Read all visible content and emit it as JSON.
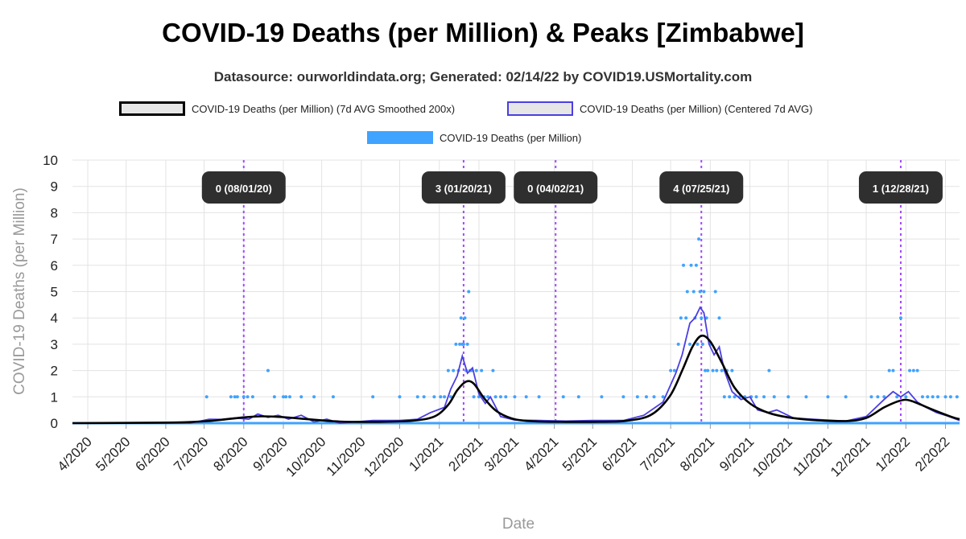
{
  "chart_data": {
    "type": "line",
    "title": "COVID-19 Deaths (per Million) & Peaks [Zimbabwe]",
    "subtitle": "Datasource: ourworldindata.org; Generated: 02/14/22 by COVID19.USMortality.com",
    "xlabel": "Date",
    "ylabel": "COVID-19 Deaths (per Million)",
    "ylim": [
      0,
      10
    ],
    "yticks": [
      0,
      1,
      2,
      3,
      4,
      5,
      6,
      7,
      8,
      9,
      10
    ],
    "xlim": [
      "2020-03-20",
      "2022-02-12"
    ],
    "xticks": [
      "4/2020",
      "5/2020",
      "6/2020",
      "7/2020",
      "8/2020",
      "9/2020",
      "10/2020",
      "11/2020",
      "12/2020",
      "1/2021",
      "2/2021",
      "3/2021",
      "4/2021",
      "5/2021",
      "6/2021",
      "7/2021",
      "8/2021",
      "9/2021",
      "10/2021",
      "11/2021",
      "12/2021",
      "1/2022",
      "2/2022"
    ],
    "grid": true,
    "legend": [
      {
        "label": "COVID-19 Deaths (per Million) (7d AVG Smoothed 200x)",
        "color": "#000000",
        "fill": "#e6e6e6",
        "kind": "line"
      },
      {
        "label": "COVID-19 Deaths (per Million) (Centered 7d AVG)",
        "color": "#4a3fe0",
        "fill": "#e6e6e6",
        "kind": "line"
      },
      {
        "label": "COVID-19 Deaths (per Million)",
        "color": "#3fa3ff",
        "fill": "#3fa3ff",
        "kind": "dots"
      }
    ],
    "series": [
      {
        "name": "COVID-19 Deaths (per Million) (7d AVG Smoothed 200x)",
        "color": "#000000",
        "points": [
          [
            "2020-03-20",
            0
          ],
          [
            "2020-06-01",
            0.02
          ],
          [
            "2020-07-01",
            0.07
          ],
          [
            "2020-07-15",
            0.13
          ],
          [
            "2020-08-01",
            0.22
          ],
          [
            "2020-08-15",
            0.26
          ],
          [
            "2020-09-01",
            0.23
          ],
          [
            "2020-09-20",
            0.15
          ],
          [
            "2020-10-15",
            0.06
          ],
          [
            "2020-11-15",
            0.05
          ],
          [
            "2020-12-10",
            0.09
          ],
          [
            "2020-12-28",
            0.25
          ],
          [
            "2021-01-08",
            0.7
          ],
          [
            "2021-01-15",
            1.25
          ],
          [
            "2021-01-22",
            1.58
          ],
          [
            "2021-01-28",
            1.5
          ],
          [
            "2021-02-05",
            0.95
          ],
          [
            "2021-02-15",
            0.45
          ],
          [
            "2021-03-01",
            0.15
          ],
          [
            "2021-03-20",
            0.06
          ],
          [
            "2021-04-10",
            0.05
          ],
          [
            "2021-05-01",
            0.05
          ],
          [
            "2021-05-25",
            0.08
          ],
          [
            "2021-06-15",
            0.3
          ],
          [
            "2021-06-30",
            1.0
          ],
          [
            "2021-07-10",
            2.0
          ],
          [
            "2021-07-18",
            2.9
          ],
          [
            "2021-07-25",
            3.32
          ],
          [
            "2021-08-01",
            3.1
          ],
          [
            "2021-08-10",
            2.3
          ],
          [
            "2021-08-20",
            1.35
          ],
          [
            "2021-09-01",
            0.75
          ],
          [
            "2021-09-15",
            0.4
          ],
          [
            "2021-10-01",
            0.22
          ],
          [
            "2021-10-20",
            0.12
          ],
          [
            "2021-11-15",
            0.08
          ],
          [
            "2021-12-01",
            0.2
          ],
          [
            "2021-12-15",
            0.6
          ],
          [
            "2021-12-28",
            0.86
          ],
          [
            "2022-01-05",
            0.85
          ],
          [
            "2022-01-20",
            0.55
          ],
          [
            "2022-02-05",
            0.25
          ],
          [
            "2022-02-12",
            0.15
          ]
        ]
      },
      {
        "name": "COVID-19 Deaths (per Million) (Centered 7d AVG)",
        "color": "#4a3fe0",
        "points": [
          [
            "2020-03-20",
            0
          ],
          [
            "2020-06-20",
            0
          ],
          [
            "2020-07-05",
            0.15
          ],
          [
            "2020-07-15",
            0.14
          ],
          [
            "2020-07-25",
            0.2
          ],
          [
            "2020-08-05",
            0.15
          ],
          [
            "2020-08-12",
            0.35
          ],
          [
            "2020-08-20",
            0.22
          ],
          [
            "2020-08-28",
            0.3
          ],
          [
            "2020-09-05",
            0.15
          ],
          [
            "2020-09-15",
            0.3
          ],
          [
            "2020-09-25",
            0.05
          ],
          [
            "2020-10-05",
            0.15
          ],
          [
            "2020-10-15",
            0
          ],
          [
            "2020-11-10",
            0.1
          ],
          [
            "2020-12-01",
            0.1
          ],
          [
            "2020-12-15",
            0.15
          ],
          [
            "2020-12-25",
            0.4
          ],
          [
            "2021-01-05",
            0.6
          ],
          [
            "2021-01-10",
            1.3
          ],
          [
            "2021-01-15",
            1.8
          ],
          [
            "2021-01-19",
            2.55
          ],
          [
            "2021-01-23",
            1.9
          ],
          [
            "2021-01-27",
            2.1
          ],
          [
            "2021-02-01",
            1.1
          ],
          [
            "2021-02-06",
            0.75
          ],
          [
            "2021-02-10",
            1.0
          ],
          [
            "2021-02-18",
            0.25
          ],
          [
            "2021-03-01",
            0.12
          ],
          [
            "2021-03-20",
            0.1
          ],
          [
            "2021-04-10",
            0.08
          ],
          [
            "2021-05-01",
            0.1
          ],
          [
            "2021-05-25",
            0.1
          ],
          [
            "2021-06-10",
            0.3
          ],
          [
            "2021-06-25",
            0.8
          ],
          [
            "2021-07-05",
            1.9
          ],
          [
            "2021-07-10",
            2.6
          ],
          [
            "2021-07-16",
            3.8
          ],
          [
            "2021-07-20",
            4.0
          ],
          [
            "2021-07-24",
            4.4
          ],
          [
            "2021-07-27",
            4.2
          ],
          [
            "2021-07-31",
            3.0
          ],
          [
            "2021-08-04",
            2.6
          ],
          [
            "2021-08-08",
            2.9
          ],
          [
            "2021-08-12",
            2.0
          ],
          [
            "2021-08-18",
            1.2
          ],
          [
            "2021-08-25",
            0.9
          ],
          [
            "2021-09-01",
            1.0
          ],
          [
            "2021-09-07",
            0.5
          ],
          [
            "2021-09-15",
            0.4
          ],
          [
            "2021-09-22",
            0.5
          ],
          [
            "2021-10-05",
            0.2
          ],
          [
            "2021-10-20",
            0.15
          ],
          [
            "2021-11-15",
            0.08
          ],
          [
            "2021-12-01",
            0.25
          ],
          [
            "2021-12-15",
            0.9
          ],
          [
            "2021-12-22",
            1.2
          ],
          [
            "2021-12-28",
            1.0
          ],
          [
            "2022-01-03",
            1.2
          ],
          [
            "2022-01-10",
            0.8
          ],
          [
            "2022-01-17",
            0.6
          ],
          [
            "2022-01-25",
            0.4
          ],
          [
            "2022-02-01",
            0.3
          ],
          [
            "2022-02-12",
            0.1
          ]
        ]
      },
      {
        "name": "COVID-19 Deaths (per Million)",
        "color": "#3fa3ff",
        "points": [
          [
            "2020-07-03",
            1
          ],
          [
            "2020-07-22",
            1
          ],
          [
            "2020-07-25",
            1
          ],
          [
            "2020-07-27",
            1
          ],
          [
            "2020-08-01",
            1
          ],
          [
            "2020-08-04",
            1
          ],
          [
            "2020-08-08",
            1
          ],
          [
            "2020-08-20",
            2
          ],
          [
            "2020-08-25",
            1
          ],
          [
            "2020-09-01",
            1
          ],
          [
            "2020-09-03",
            1
          ],
          [
            "2020-09-06",
            1
          ],
          [
            "2020-09-15",
            1
          ],
          [
            "2020-09-25",
            1
          ],
          [
            "2020-10-10",
            1
          ],
          [
            "2020-11-10",
            1
          ],
          [
            "2020-12-01",
            1
          ],
          [
            "2020-12-15",
            1
          ],
          [
            "2020-12-20",
            1
          ],
          [
            "2020-12-28",
            1
          ],
          [
            "2021-01-02",
            1
          ],
          [
            "2021-01-05",
            1
          ],
          [
            "2021-01-08",
            2
          ],
          [
            "2021-01-10",
            1
          ],
          [
            "2021-01-12",
            2
          ],
          [
            "2021-01-14",
            3
          ],
          [
            "2021-01-16",
            2
          ],
          [
            "2021-01-17",
            3
          ],
          [
            "2021-01-18",
            4
          ],
          [
            "2021-01-19",
            3
          ],
          [
            "2021-01-20",
            3
          ],
          [
            "2021-01-21",
            4
          ],
          [
            "2021-01-22",
            2
          ],
          [
            "2021-01-23",
            3
          ],
          [
            "2021-01-24",
            5
          ],
          [
            "2021-01-25",
            2
          ],
          [
            "2021-01-26",
            2
          ],
          [
            "2021-01-28",
            1
          ],
          [
            "2021-01-30",
            2
          ],
          [
            "2021-02-01",
            1
          ],
          [
            "2021-02-03",
            2
          ],
          [
            "2021-02-05",
            1
          ],
          [
            "2021-02-08",
            1
          ],
          [
            "2021-02-12",
            2
          ],
          [
            "2021-02-14",
            1
          ],
          [
            "2021-02-18",
            1
          ],
          [
            "2021-02-22",
            1
          ],
          [
            "2021-03-01",
            1
          ],
          [
            "2021-03-10",
            1
          ],
          [
            "2021-03-20",
            1
          ],
          [
            "2021-04-08",
            1
          ],
          [
            "2021-04-20",
            1
          ],
          [
            "2021-05-08",
            1
          ],
          [
            "2021-05-25",
            1
          ],
          [
            "2021-06-05",
            1
          ],
          [
            "2021-06-12",
            1
          ],
          [
            "2021-06-18",
            1
          ],
          [
            "2021-06-25",
            1
          ],
          [
            "2021-07-01",
            2
          ],
          [
            "2021-07-04",
            2
          ],
          [
            "2021-07-07",
            3
          ],
          [
            "2021-07-09",
            4
          ],
          [
            "2021-07-11",
            6
          ],
          [
            "2021-07-13",
            4
          ],
          [
            "2021-07-14",
            5
          ],
          [
            "2021-07-16",
            3
          ],
          [
            "2021-07-17",
            6
          ],
          [
            "2021-07-19",
            5
          ],
          [
            "2021-07-20",
            4
          ],
          [
            "2021-07-21",
            6
          ],
          [
            "2021-07-22",
            3
          ],
          [
            "2021-07-23",
            7
          ],
          [
            "2021-07-24",
            5
          ],
          [
            "2021-07-25",
            4
          ],
          [
            "2021-07-26",
            3
          ],
          [
            "2021-07-27",
            5
          ],
          [
            "2021-07-28",
            2
          ],
          [
            "2021-07-29",
            4
          ],
          [
            "2021-07-30",
            2
          ],
          [
            "2021-08-01",
            3
          ],
          [
            "2021-08-03",
            2
          ],
          [
            "2021-08-05",
            5
          ],
          [
            "2021-08-06",
            2
          ],
          [
            "2021-08-08",
            4
          ],
          [
            "2021-08-10",
            2
          ],
          [
            "2021-08-12",
            1
          ],
          [
            "2021-08-14",
            2
          ],
          [
            "2021-08-16",
            1
          ],
          [
            "2021-08-18",
            2
          ],
          [
            "2021-08-20",
            1
          ],
          [
            "2021-08-24",
            1
          ],
          [
            "2021-08-28",
            1
          ],
          [
            "2021-09-02",
            1
          ],
          [
            "2021-09-06",
            1
          ],
          [
            "2021-09-12",
            1
          ],
          [
            "2021-09-16",
            2
          ],
          [
            "2021-09-20",
            1
          ],
          [
            "2021-10-01",
            1
          ],
          [
            "2021-10-15",
            1
          ],
          [
            "2021-11-01",
            1
          ],
          [
            "2021-11-15",
            1
          ],
          [
            "2021-12-05",
            1
          ],
          [
            "2021-12-10",
            1
          ],
          [
            "2021-12-15",
            1
          ],
          [
            "2021-12-19",
            2
          ],
          [
            "2021-12-22",
            2
          ],
          [
            "2021-12-25",
            1
          ],
          [
            "2021-12-28",
            4
          ],
          [
            "2022-01-01",
            1
          ],
          [
            "2022-01-04",
            2
          ],
          [
            "2022-01-07",
            2
          ],
          [
            "2022-01-10",
            2
          ],
          [
            "2022-01-14",
            1
          ],
          [
            "2022-01-18",
            1
          ],
          [
            "2022-01-22",
            1
          ],
          [
            "2022-01-26",
            1
          ],
          [
            "2022-02-01",
            1
          ],
          [
            "2022-02-05",
            1
          ],
          [
            "2022-02-10",
            1
          ]
        ]
      }
    ],
    "annotations": [
      {
        "date": "2020-08-01",
        "label": "0 (08/01/20)"
      },
      {
        "date": "2021-01-20",
        "label": "3 (01/20/21)"
      },
      {
        "date": "2021-04-02",
        "label": "0 (04/02/21)"
      },
      {
        "date": "2021-07-25",
        "label": "4 (07/25/21)"
      },
      {
        "date": "2021-12-28",
        "label": "1 (12/28/21)"
      }
    ]
  }
}
